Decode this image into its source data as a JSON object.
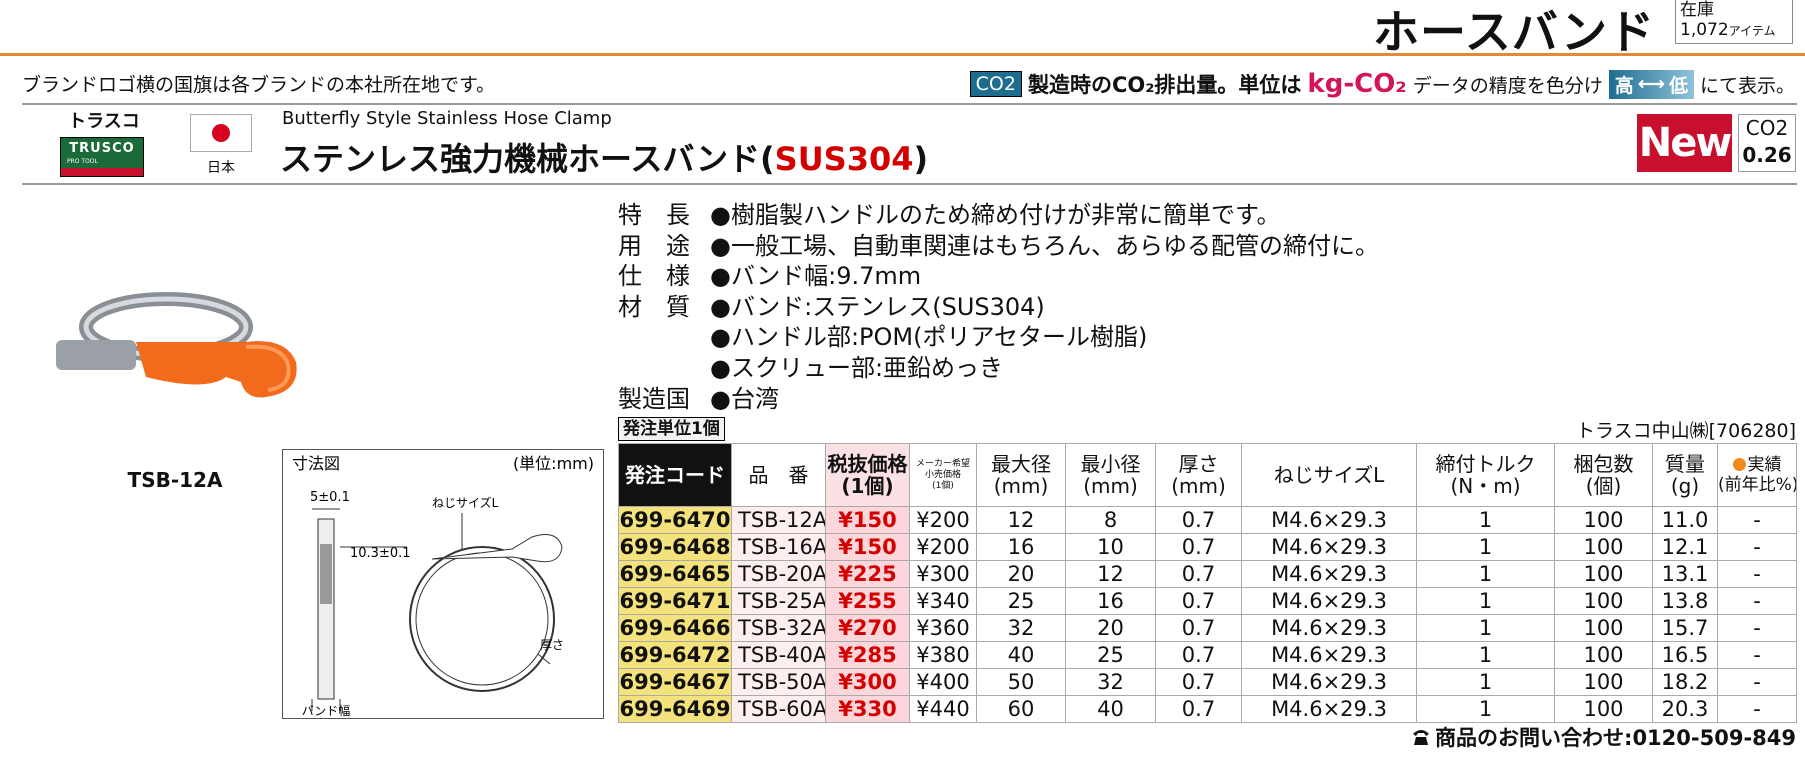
{
  "header": {
    "title": "ホースバンド",
    "stock_label": "在庫",
    "stock_count": "1,072",
    "stock_unit": "アイテム"
  },
  "notice": "ブランドロゴ横の国旗は各ブランドの本社所在地です。",
  "co2_legend": {
    "badge": "CO2",
    "text": "製造時のCO₂排出量。単位は",
    "unit": "kg-CO₂",
    "accuracy": "データの精度を色分け",
    "high": "高",
    "low": "低",
    "suffix": "にて表示。"
  },
  "brand": {
    "name": "トラスコ",
    "logo": "TRUSCO",
    "logo_sub": "PRO TOOL",
    "country": "日本"
  },
  "product": {
    "subtitle": "Butterfly Style Stainless Hose Clamp",
    "title": "ステンレス強力機械ホースバンド(",
    "title_highlight": "SUS304",
    "title_end": ")",
    "badge": "New",
    "co2_label": "CO2",
    "co2_value": "0.26",
    "image_caption": "TSB-12A"
  },
  "specs": [
    {
      "label": "特　長",
      "lines": [
        "●樹脂製ハンドルのため締め付けが非常に簡単です。"
      ]
    },
    {
      "label": "用　途",
      "lines": [
        "●一般工場、自動車関連はもちろん、あらゆる配管の締付に。"
      ]
    },
    {
      "label": "仕　様",
      "lines": [
        "●バンド幅:9.7mm"
      ]
    },
    {
      "label": "材　質",
      "lines": [
        "●バンド:ステンレス(SUS304)",
        "●ハンドル部:POM(ポリアセタール樹脂)",
        "●スクリュー部:亜鉛めっき"
      ]
    },
    {
      "label": "製造国",
      "lines": [
        "●台湾"
      ]
    }
  ],
  "order_unit": "発注単位1個",
  "supplier": "トラスコ中山㈱[706280]",
  "diagram": {
    "title": "寸法図",
    "unit": "(単位:mm)",
    "width_tol": "5±0.1",
    "screw": "ねじサイズL",
    "height_tol": "10.3±0.1",
    "thickness": "厚さ",
    "band_width": "バンド幅"
  },
  "table": {
    "headers": [
      [
        "発注コード"
      ],
      [
        "品　番"
      ],
      [
        "税抜価格",
        "(1個)"
      ],
      [
        "メーカー希望",
        "小売価格",
        "(1個)"
      ],
      [
        "最大径",
        "(mm)"
      ],
      [
        "最小径",
        "(mm)"
      ],
      [
        "厚さ",
        "(mm)"
      ],
      [
        "ねじサイズL"
      ],
      [
        "締付トルク",
        "(N・m)"
      ],
      [
        "梱包数",
        "(個)"
      ],
      [
        "質量",
        "(g)"
      ],
      [
        "実績",
        "(前年比%)"
      ]
    ],
    "rows": [
      [
        "699-6470",
        "TSB-12A",
        "¥150",
        "¥200",
        "12",
        "8",
        "0.7",
        "M4.6×29.3",
        "1",
        "100",
        "11.0",
        "-"
      ],
      [
        "699-6468",
        "TSB-16A",
        "¥150",
        "¥200",
        "16",
        "10",
        "0.7",
        "M4.6×29.3",
        "1",
        "100",
        "12.1",
        "-"
      ],
      [
        "699-6465",
        "TSB-20A",
        "¥225",
        "¥300",
        "20",
        "12",
        "0.7",
        "M4.6×29.3",
        "1",
        "100",
        "13.1",
        "-"
      ],
      [
        "699-6471",
        "TSB-25A",
        "¥255",
        "¥340",
        "25",
        "16",
        "0.7",
        "M4.6×29.3",
        "1",
        "100",
        "13.8",
        "-"
      ],
      [
        "699-6466",
        "TSB-32A",
        "¥270",
        "¥360",
        "32",
        "20",
        "0.7",
        "M4.6×29.3",
        "1",
        "100",
        "15.7",
        "-"
      ],
      [
        "699-6472",
        "TSB-40A",
        "¥285",
        "¥380",
        "40",
        "25",
        "0.7",
        "M4.6×29.3",
        "1",
        "100",
        "16.5",
        "-"
      ],
      [
        "699-6467",
        "TSB-50A",
        "¥300",
        "¥400",
        "50",
        "32",
        "0.7",
        "M4.6×29.3",
        "1",
        "100",
        "18.2",
        "-"
      ],
      [
        "699-6469",
        "TSB-60A",
        "¥330",
        "¥440",
        "60",
        "40",
        "0.7",
        "M4.6×29.3",
        "1",
        "100",
        "20.3",
        "-"
      ]
    ]
  },
  "footer": "商品のお問い合わせ:0120-509-849"
}
